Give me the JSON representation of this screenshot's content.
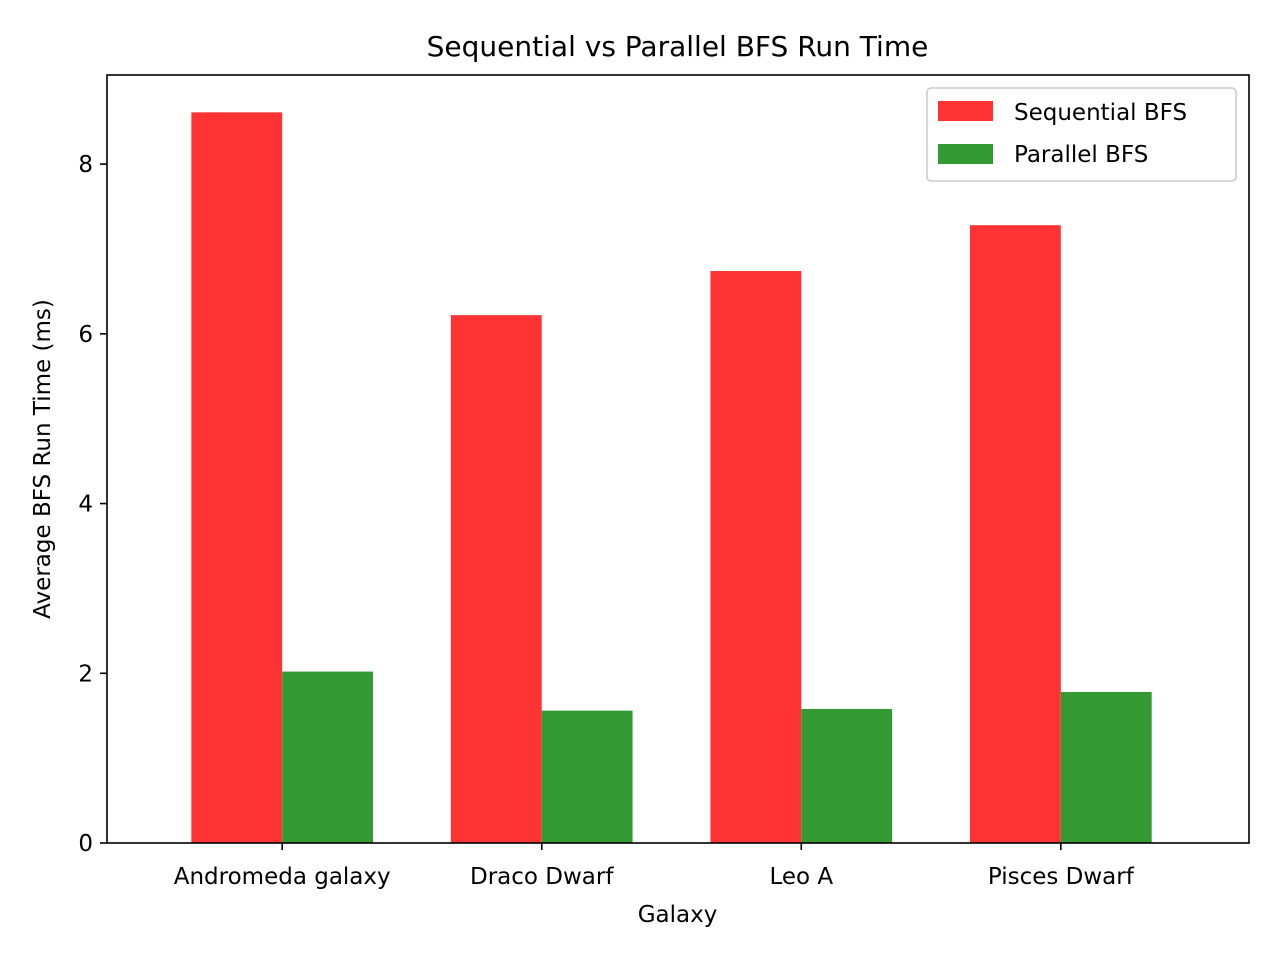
{
  "chart_data": {
    "type": "bar",
    "title": "Sequential vs Parallel BFS Run Time",
    "xlabel": "Galaxy",
    "ylabel": "Average BFS Run Time (ms)",
    "categories": [
      "Andromeda galaxy",
      "Draco Dwarf",
      "Leo A",
      "Pisces Dwarf"
    ],
    "series": [
      {
        "name": "Sequential BFS",
        "color": "#ff3333",
        "values": [
          8.61,
          6.22,
          6.74,
          7.28
        ]
      },
      {
        "name": "Parallel BFS",
        "color": "#339933",
        "values": [
          2.02,
          1.56,
          1.58,
          1.78
        ]
      }
    ],
    "ylim": [
      0,
      9.05
    ],
    "yticks": [
      0,
      2,
      4,
      6,
      8
    ],
    "grid": false,
    "legend_position": "top-right"
  }
}
